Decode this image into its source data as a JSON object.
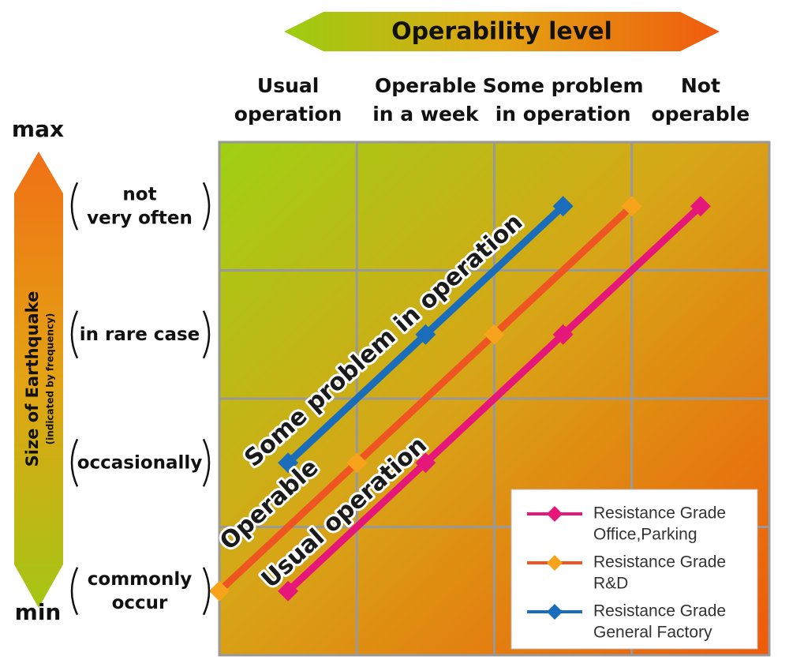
{
  "chart_data": {
    "type": "line",
    "title": "Operability level",
    "y_title": "Size of Earthquake",
    "y_subtitle": "(indicated by frequency)",
    "y_max_label": "max",
    "y_min_label": "min",
    "xlim": [
      0,
      4
    ],
    "ylim": [
      0,
      4
    ],
    "xticks": [
      {
        "value": 0.5,
        "label": "Usual\noperation"
      },
      {
        "value": 1.5,
        "label": "Operable\nin a week"
      },
      {
        "value": 2.5,
        "label": "Some problem\nin operation"
      },
      {
        "value": 3.5,
        "label": "Not\noperable"
      }
    ],
    "yticks": [
      {
        "value": 0.5,
        "label": "commonly\noccur"
      },
      {
        "value": 1.5,
        "label": "occasionally"
      },
      {
        "value": 2.5,
        "label": "in rare case"
      },
      {
        "value": 3.5,
        "label": "not\nvery often"
      }
    ],
    "grid": true,
    "legend": "lower right",
    "series": [
      {
        "name": "Resistance Grade\nOffice,Parking",
        "color": "#e6177b",
        "marker_color": "#e6177b",
        "x": [
          0.5,
          1.5,
          2.5,
          3.5
        ],
        "values": [
          0.5,
          1.5,
          2.5,
          3.5
        ]
      },
      {
        "name": "Resistance Grade\nR&D",
        "color": "#ee5522",
        "marker_color": "#f8a31c",
        "x": [
          0,
          1,
          2,
          3
        ],
        "values": [
          0.5,
          1.5,
          2.5,
          3.5
        ]
      },
      {
        "name": "Resistance Grade\nGeneral Factory",
        "color": "#1a6dba",
        "marker_color": "#1a6dba",
        "x": [
          0.5,
          1.5,
          2.5
        ],
        "values": [
          1.5,
          2.5,
          3.5
        ]
      }
    ],
    "annotations": [
      "Some problem in operation",
      "Operable",
      "Usual operation"
    ]
  }
}
